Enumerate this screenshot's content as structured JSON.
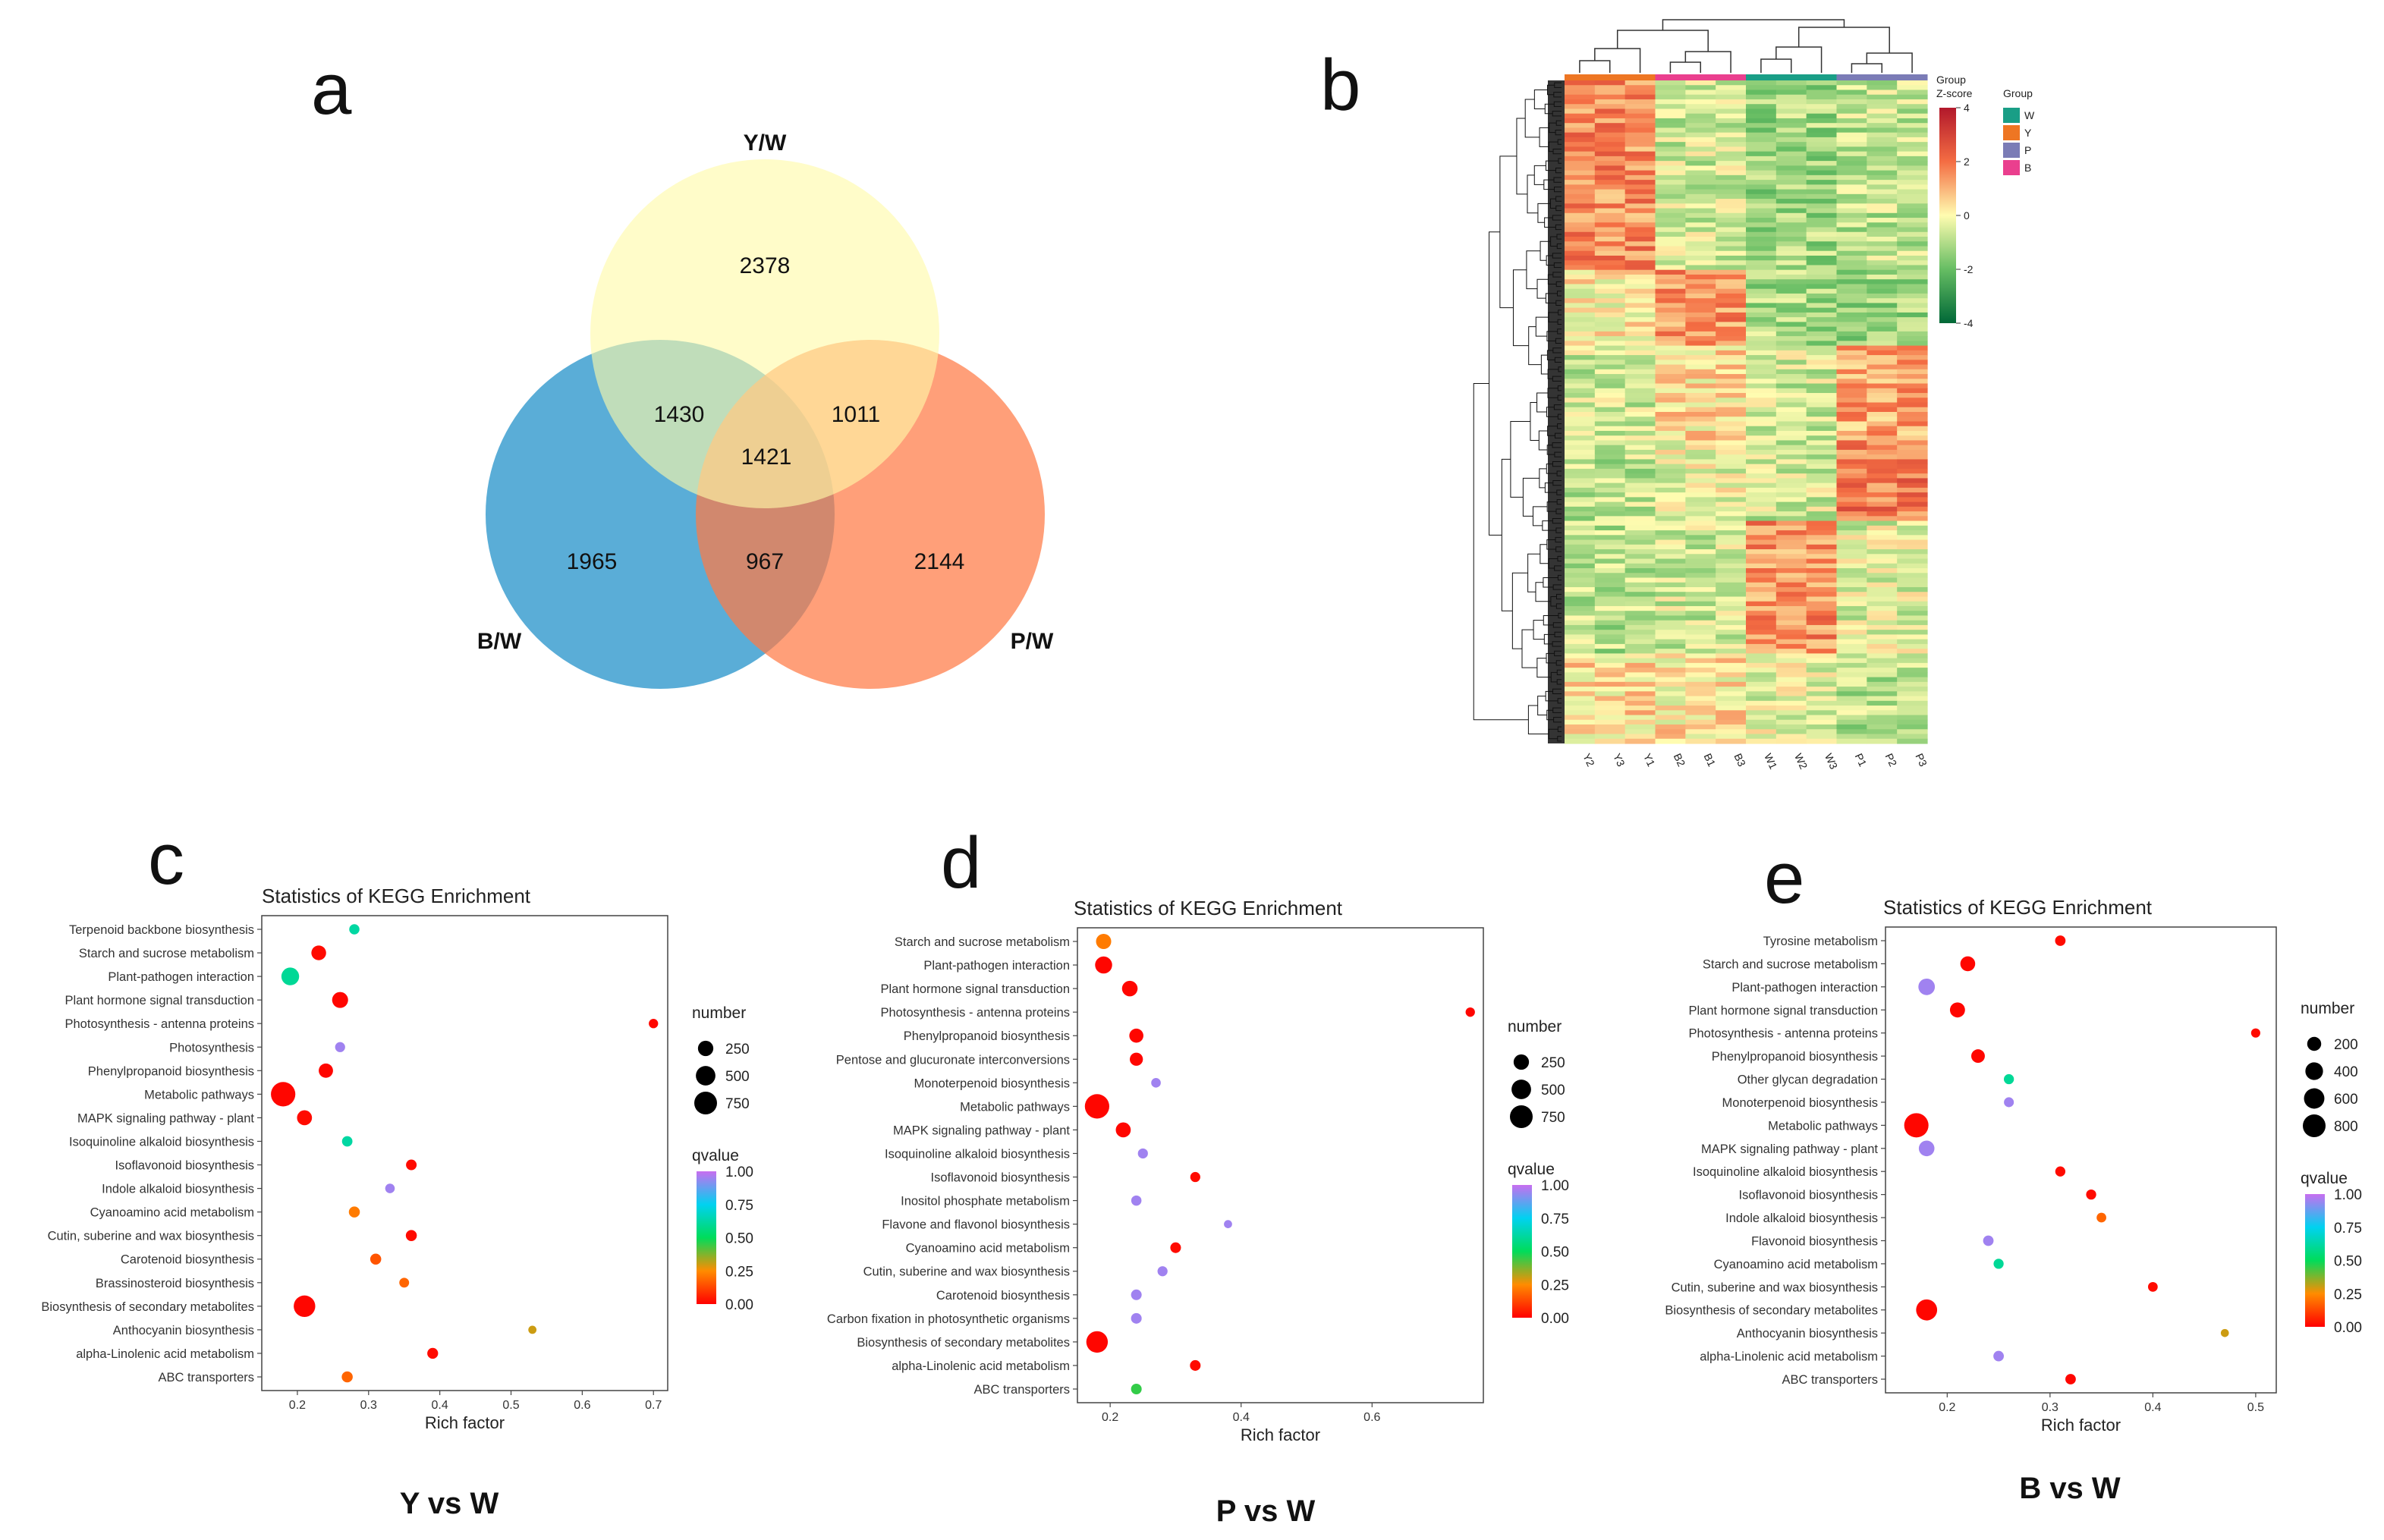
{
  "labels": {
    "a": "a",
    "b": "b",
    "c": "c",
    "d": "d",
    "e": "e"
  },
  "venn": {
    "sets": [
      "Y/W",
      "B/W",
      "P/W"
    ],
    "colors": {
      "Y": "#fffaa8",
      "B": "#2b96cc",
      "P": "#ff7a45"
    },
    "regions": {
      "y_only": "2378",
      "y_b": "1430",
      "y_p": "1011",
      "all": "1421",
      "b_only": "1965",
      "b_p": "967",
      "p_only": "2144"
    }
  },
  "heatmap": {
    "group_header": "Group",
    "zscore_label": "Z-score",
    "scale_ticks": [
      "4",
      "2",
      "0",
      "-2",
      "-4"
    ],
    "legend_title": "Group",
    "legend_items": [
      {
        "label": "W",
        "color": "#199e86"
      },
      {
        "label": "Y",
        "color": "#ee7623"
      },
      {
        "label": "P",
        "color": "#7b7cb6"
      },
      {
        "label": "B",
        "color": "#ea3f8e"
      }
    ],
    "columns": [
      "Y2",
      "Y3",
      "Y1",
      "B2",
      "B1",
      "B3",
      "W1",
      "W2",
      "W3",
      "P1",
      "P2",
      "P3"
    ],
    "column_groups": [
      "Y",
      "Y",
      "Y",
      "B",
      "B",
      "B",
      "W",
      "W",
      "W",
      "P",
      "P",
      "P"
    ]
  },
  "chart_data": [
    {
      "panel": "c",
      "type": "scatter",
      "title": "Statistics of KEGG Enrichment",
      "subtitle": "Y vs W",
      "xlabel": "Rich factor",
      "xlim": [
        0.15,
        0.72
      ],
      "xticks": [
        0.2,
        0.3,
        0.4,
        0.5,
        0.6,
        0.7
      ],
      "size_legend": {
        "title": "number",
        "values": [
          250,
          500,
          750
        ],
        "max": 750
      },
      "color_legend": {
        "title": "qvalue",
        "ticks": [
          "1.00",
          "0.75",
          "0.50",
          "0.25",
          "0.00"
        ]
      },
      "points": [
        {
          "term": "Terpenoid backbone biosynthesis",
          "rich": 0.28,
          "number": 60,
          "q": 0.62
        },
        {
          "term": "Starch and sucrose metabolism",
          "rich": 0.23,
          "number": 220,
          "q": 0.02
        },
        {
          "term": "Plant-pathogen interaction",
          "rich": 0.19,
          "number": 380,
          "q": 0.6
        },
        {
          "term": "Plant hormone signal transduction",
          "rich": 0.26,
          "number": 280,
          "q": 0.01
        },
        {
          "term": "Photosynthesis - antenna proteins",
          "rich": 0.7,
          "number": 40,
          "q": 0.01
        },
        {
          "term": "Photosynthesis",
          "rich": 0.26,
          "number": 55,
          "q": 0.95
        },
        {
          "term": "Phenylpropanoid biosynthesis",
          "rich": 0.24,
          "number": 200,
          "q": 0.01
        },
        {
          "term": "Metabolic pathways",
          "rich": 0.18,
          "number": 900,
          "q": 0.01
        },
        {
          "term": "MAPK signaling pathway - plant",
          "rich": 0.21,
          "number": 230,
          "q": 0.02
        },
        {
          "term": "Isoquinoline alkaloid biosynthesis",
          "rich": 0.27,
          "number": 65,
          "q": 0.62
        },
        {
          "term": "Isoflavonoid biosynthesis",
          "rich": 0.36,
          "number": 70,
          "q": 0.02
        },
        {
          "term": "Indole alkaloid biosynthesis",
          "rich": 0.33,
          "number": 45,
          "q": 0.95
        },
        {
          "term": "Cyanoamino acid metabolism",
          "rich": 0.28,
          "number": 80,
          "q": 0.22
        },
        {
          "term": "Cutin, suberine and wax biosynthesis",
          "rich": 0.36,
          "number": 80,
          "q": 0.02
        },
        {
          "term": "Carotenoid biosynthesis",
          "rich": 0.31,
          "number": 80,
          "q": 0.15
        },
        {
          "term": "Brassinosteroid biosynthesis",
          "rich": 0.35,
          "number": 50,
          "q": 0.18
        },
        {
          "term": "Biosynthesis of secondary metabolites",
          "rich": 0.21,
          "number": 650,
          "q": 0.01
        },
        {
          "term": "Anthocyanin biosynthesis",
          "rich": 0.53,
          "number": 20,
          "q": 0.3
        },
        {
          "term": "alpha-Linolenic acid metabolism",
          "rich": 0.39,
          "number": 75,
          "q": 0.02
        },
        {
          "term": "ABC transporters",
          "rich": 0.27,
          "number": 80,
          "q": 0.18
        }
      ]
    },
    {
      "panel": "d",
      "type": "scatter",
      "title": "Statistics of KEGG Enrichment",
      "subtitle": "P vs W",
      "xlabel": "Rich factor",
      "xlim": [
        0.15,
        0.77
      ],
      "xticks": [
        0.2,
        0.4,
        0.6
      ],
      "size_legend": {
        "title": "number",
        "values": [
          250,
          500,
          750
        ],
        "max": 750
      },
      "color_legend": {
        "title": "qvalue",
        "ticks": [
          "1.00",
          "0.75",
          "0.50",
          "0.25",
          "0.00"
        ]
      },
      "points": [
        {
          "term": "Starch and sucrose metabolism",
          "rich": 0.19,
          "number": 240,
          "q": 0.22
        },
        {
          "term": "Plant-pathogen interaction",
          "rich": 0.19,
          "number": 340,
          "q": 0.01
        },
        {
          "term": "Plant hormone signal transduction",
          "rich": 0.23,
          "number": 260,
          "q": 0.01
        },
        {
          "term": "Photosynthesis - antenna proteins",
          "rich": 0.75,
          "number": 40,
          "q": 0.01
        },
        {
          "term": "Phenylpropanoid biosynthesis",
          "rich": 0.24,
          "number": 190,
          "q": 0.01
        },
        {
          "term": "Pentose and glucuronate interconversions",
          "rich": 0.24,
          "number": 150,
          "q": 0.01
        },
        {
          "term": "Monoterpenoid biosynthesis",
          "rich": 0.27,
          "number": 45,
          "q": 0.95
        },
        {
          "term": "Metabolic pathways",
          "rich": 0.18,
          "number": 900,
          "q": 0.01
        },
        {
          "term": "MAPK signaling pathway - plant",
          "rich": 0.22,
          "number": 230,
          "q": 0.01
        },
        {
          "term": "Isoquinoline alkaloid biosynthesis",
          "rich": 0.25,
          "number": 55,
          "q": 0.95
        },
        {
          "term": "Isoflavonoid biosynthesis",
          "rich": 0.33,
          "number": 55,
          "q": 0.02
        },
        {
          "term": "Inositol phosphate metabolism",
          "rich": 0.24,
          "number": 60,
          "q": 0.95
        },
        {
          "term": "Flavone and flavonol biosynthesis",
          "rich": 0.38,
          "number": 20,
          "q": 0.95
        },
        {
          "term": "Cyanoamino acid metabolism",
          "rich": 0.3,
          "number": 70,
          "q": 0.02
        },
        {
          "term": "Cutin, suberine and wax biosynthesis",
          "rich": 0.28,
          "number": 55,
          "q": 0.95
        },
        {
          "term": "Carotenoid biosynthesis",
          "rich": 0.24,
          "number": 70,
          "q": 0.95
        },
        {
          "term": "Carbon fixation in photosynthetic organisms",
          "rich": 0.24,
          "number": 70,
          "q": 0.95
        },
        {
          "term": "Biosynthesis of secondary metabolites",
          "rich": 0.18,
          "number": 650,
          "q": 0.01
        },
        {
          "term": "alpha-Linolenic acid metabolism",
          "rich": 0.33,
          "number": 70,
          "q": 0.02
        },
        {
          "term": "ABC transporters",
          "rich": 0.24,
          "number": 70,
          "q": 0.45
        }
      ]
    },
    {
      "panel": "e",
      "type": "scatter",
      "title": "Statistics of KEGG Enrichment",
      "subtitle": "B vs W",
      "xlabel": "Rich factor",
      "xlim": [
        0.14,
        0.52
      ],
      "xticks": [
        0.2,
        0.3,
        0.4,
        0.5
      ],
      "size_legend": {
        "title": "number",
        "values": [
          200,
          400,
          600,
          800
        ],
        "max": 800
      },
      "color_legend": {
        "title": "qvalue",
        "ticks": [
          "1.00",
          "0.75",
          "0.50",
          "0.25",
          "0.00"
        ]
      },
      "points": [
        {
          "term": "Tyrosine metabolism",
          "rich": 0.31,
          "number": 70,
          "q": 0.02
        },
        {
          "term": "Starch and sucrose metabolism",
          "rich": 0.22,
          "number": 240,
          "q": 0.01
        },
        {
          "term": "Plant-pathogen interaction",
          "rich": 0.18,
          "number": 330,
          "q": 0.95
        },
        {
          "term": "Plant hormone signal transduction",
          "rich": 0.21,
          "number": 250,
          "q": 0.01
        },
        {
          "term": "Photosynthesis - antenna proteins",
          "rich": 0.5,
          "number": 40,
          "q": 0.02
        },
        {
          "term": "Phenylpropanoid biosynthesis",
          "rich": 0.23,
          "number": 180,
          "q": 0.01
        },
        {
          "term": "Other glycan degradation",
          "rich": 0.26,
          "number": 60,
          "q": 0.6
        },
        {
          "term": "Monoterpenoid biosynthesis",
          "rich": 0.26,
          "number": 55,
          "q": 0.95
        },
        {
          "term": "Metabolic pathways",
          "rich": 0.17,
          "number": 950,
          "q": 0.01
        },
        {
          "term": "MAPK signaling pathway - plant",
          "rich": 0.18,
          "number": 280,
          "q": 0.95
        },
        {
          "term": "Isoquinoline alkaloid biosynthesis",
          "rich": 0.31,
          "number": 60,
          "q": 0.02
        },
        {
          "term": "Isoflavonoid biosynthesis",
          "rich": 0.34,
          "number": 60,
          "q": 0.02
        },
        {
          "term": "Indole alkaloid biosynthesis",
          "rich": 0.35,
          "number": 50,
          "q": 0.18
        },
        {
          "term": "Flavonoid biosynthesis",
          "rich": 0.24,
          "number": 70,
          "q": 0.95
        },
        {
          "term": "Cyanoamino acid metabolism",
          "rich": 0.25,
          "number": 60,
          "q": 0.6
        },
        {
          "term": "Cutin, suberine and wax biosynthesis",
          "rich": 0.4,
          "number": 50,
          "q": 0.02
        },
        {
          "term": "Biosynthesis of secondary metabolites",
          "rich": 0.18,
          "number": 650,
          "q": 0.01
        },
        {
          "term": "Anthocyanin biosynthesis",
          "rich": 0.47,
          "number": 20,
          "q": 0.3
        },
        {
          "term": "alpha-Linolenic acid metabolism",
          "rich": 0.25,
          "number": 70,
          "q": 0.95
        },
        {
          "term": "ABC transporters",
          "rich": 0.32,
          "number": 70,
          "q": 0.01
        }
      ]
    }
  ]
}
